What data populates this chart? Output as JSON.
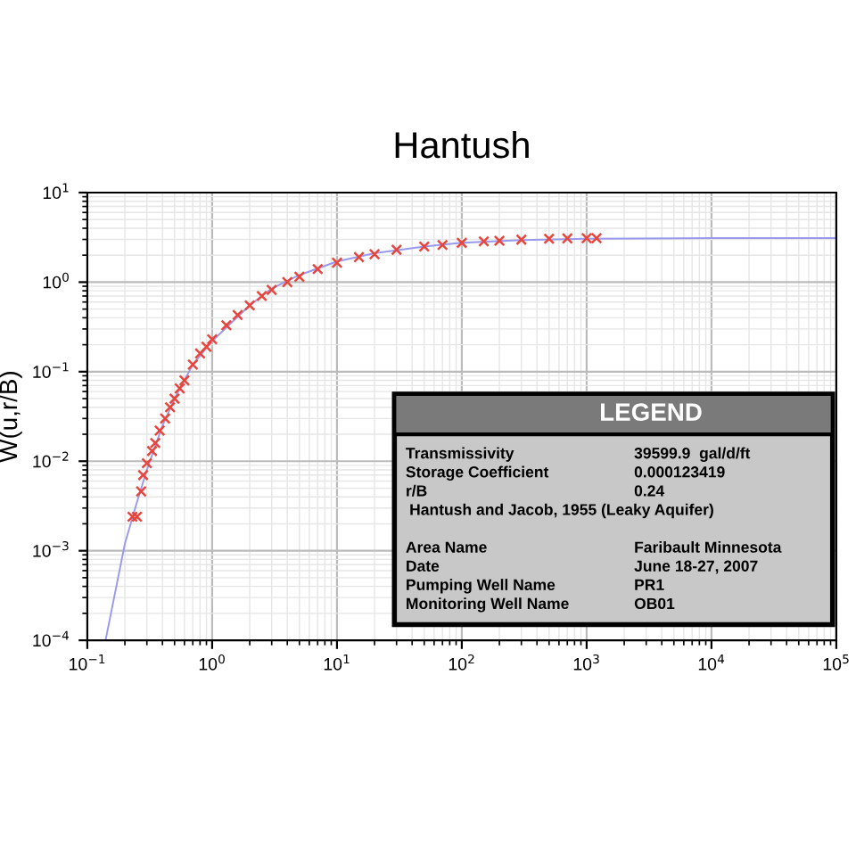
{
  "chart_data": {
    "type": "scatter",
    "title": "Hantush",
    "ylabel": "W(u,r/B)",
    "log": "xy",
    "grid": true,
    "xlim": [
      0.1,
      100000
    ],
    "ylim": [
      0.0001,
      10
    ],
    "xticks": [
      {
        "value": 0.1,
        "label": "10$^{−1}$"
      },
      {
        "value": 1,
        "label": "10$^{0}$"
      },
      {
        "value": 10,
        "label": "10$^{1}$"
      },
      {
        "value": 100,
        "label": "10$^{2}$"
      },
      {
        "value": 1000,
        "label": "10$^{3}$"
      },
      {
        "value": 10000,
        "label": "10$^{4}$"
      },
      {
        "value": 100000,
        "label": "10$^{5}$"
      }
    ],
    "yticks": [
      {
        "value": 0.0001,
        "label": "10$^{−4}$"
      },
      {
        "value": 0.001,
        "label": "10$^{−3}$"
      },
      {
        "value": 0.01,
        "label": "10$^{−2}$"
      },
      {
        "value": 0.1,
        "label": "10$^{−1}$"
      },
      {
        "value": 1,
        "label": "10$^{0}$"
      },
      {
        "value": 10,
        "label": "10$^{1}$"
      }
    ],
    "series": [
      {
        "type": "line",
        "color": "#9999ee",
        "line_style": "solid",
        "marker": "none",
        "x": [
          0.14,
          0.2,
          0.25,
          0.3,
          0.4,
          0.5,
          0.7,
          1,
          2,
          3,
          5,
          10,
          20,
          50,
          100,
          300,
          1000,
          10000,
          100000
        ],
        "values": [
          0.0001,
          0.0012,
          0.0035,
          0.008,
          0.025,
          0.05,
          0.12,
          0.22,
          0.55,
          0.85,
          1.2,
          1.7,
          2.1,
          2.5,
          2.75,
          2.95,
          3.05,
          3.1,
          3.1
        ]
      },
      {
        "color": "#e8453c",
        "marker": "cross",
        "x": [
          0.23,
          0.25,
          0.27,
          0.28,
          0.3,
          0.33,
          0.35,
          0.38,
          0.42,
          0.46,
          0.5,
          0.55,
          0.6,
          0.7,
          0.8,
          0.9,
          1,
          1.3,
          1.6,
          2,
          2.5,
          3,
          4,
          5,
          7,
          10,
          15,
          20,
          30,
          50,
          70,
          100,
          150,
          200,
          300,
          500,
          700,
          1000,
          1200
        ],
        "values": [
          0.0024,
          0.0024,
          0.0046,
          0.007,
          0.0095,
          0.013,
          0.016,
          0.022,
          0.03,
          0.04,
          0.05,
          0.065,
          0.08,
          0.12,
          0.16,
          0.19,
          0.23,
          0.33,
          0.43,
          0.55,
          0.7,
          0.82,
          1.0,
          1.15,
          1.4,
          1.65,
          1.9,
          2.05,
          2.3,
          2.5,
          2.6,
          2.75,
          2.85,
          2.9,
          2.98,
          3.05,
          3.08,
          3.1,
          3.1
        ]
      }
    ],
    "annotations": [
      "LEGEND",
      "Transmissivity",
      "39599.9  gal/d/ft",
      "Storage Coefficient",
      "0.000123419",
      "r/B",
      "0.24",
      "Hantush and Jacob, 1955 (Leaky Aquifer)",
      "Area Name",
      "Faribault Minnesota",
      "Date",
      "June 18-27, 2007",
      "Pumping Well Name",
      "PR1",
      "Monitoring Well Name",
      "OB01"
    ]
  }
}
